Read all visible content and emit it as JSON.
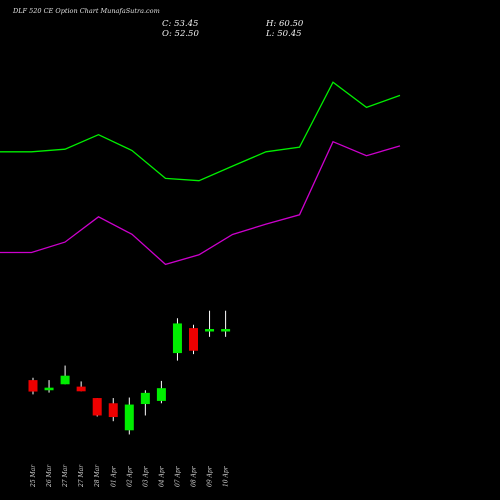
{
  "header": {
    "title": "DLF 520  CE Option  Chart MunafaSutra.com",
    "close_label": "C: 53.45",
    "open_label": "O: 52.50",
    "high_label": "H: 60.50",
    "low_label": "L: 50.45"
  },
  "colors": {
    "background": "#000000",
    "up": "#00ee00",
    "down": "#ee0000",
    "upper_band": "#00ee00",
    "lower_band": "#cc00cc",
    "wick_up": "#ffffff",
    "wick_down": "#ffffff",
    "date_label": "#d8d8d8"
  },
  "chart_data": {
    "type": "candlestick",
    "title": "DLF 520  CE Option  Chart MunafaSutra.com",
    "categories": [
      "25 Mar",
      "26 Mar",
      "27 Mar",
      "27 Mar",
      "28 Mar",
      "01 Apr",
      "02 Apr",
      "03 Apr",
      "04 Apr",
      "07 Apr",
      "08 Apr",
      "09 Apr",
      "10 Apr"
    ],
    "x_tick_labels": [
      "25 Mar",
      "26 Mar",
      "27 Mar",
      "27 Mar",
      "28 Mar",
      "01 Apr",
      "02 Apr",
      "03 Apr",
      "04 Apr",
      "07 Apr",
      "08 Apr",
      "09 Apr",
      "10 Apr"
    ],
    "candles": [
      {
        "date": "25 Mar",
        "open": 33.8,
        "high": 34.7,
        "low": 28.3,
        "close": 29.4
      },
      {
        "date": "26 Mar",
        "open": 29.9,
        "high": 33.8,
        "low": 29.0,
        "close": 30.9
      },
      {
        "date": "27 Mar",
        "open": 32.2,
        "high": 39.4,
        "low": 32.2,
        "close": 35.5
      },
      {
        "date": "27 Mar",
        "open": 31.3,
        "high": 33.3,
        "low": 29.5,
        "close": 29.5
      },
      {
        "date": "28 Mar",
        "open": 26.9,
        "high": 26.9,
        "low": 19.8,
        "close": 20.2
      },
      {
        "date": "01 Apr",
        "open": 24.9,
        "high": 26.9,
        "low": 18.0,
        "close": 19.6
      },
      {
        "date": "02 Apr",
        "open": 14.5,
        "high": 27.1,
        "low": 12.9,
        "close": 24.4
      },
      {
        "date": "03 Apr",
        "open": 24.6,
        "high": 29.9,
        "low": 20.2,
        "close": 28.9
      },
      {
        "date": "04 Apr",
        "open": 25.8,
        "high": 33.5,
        "low": 24.9,
        "close": 30.7
      },
      {
        "date": "07 Apr",
        "open": 44.2,
        "high": 57.6,
        "low": 41.3,
        "close": 55.6
      },
      {
        "date": "08 Apr",
        "open": 53.8,
        "high": 55.1,
        "low": 43.8,
        "close": 45.1
      },
      {
        "date": "09 Apr",
        "open": 52.5,
        "high": 60.5,
        "low": 50.45,
        "close": 53.45
      },
      {
        "date": "10 Apr",
        "open": 52.5,
        "high": 60.5,
        "low": 50.45,
        "close": 53.45
      }
    ],
    "upper_band": [
      121.6,
      121.6,
      122.6,
      128.2,
      122.1,
      111.4,
      110.5,
      116.1,
      121.6,
      123.4,
      148.4,
      138.7,
      143.3
    ],
    "lower_band": [
      82.9,
      82.9,
      86.9,
      96.6,
      89.9,
      78.3,
      82.0,
      89.8,
      93.8,
      97.4,
      125.5,
      120.1,
      123.9
    ],
    "ylim": [
      0,
      180
    ]
  }
}
